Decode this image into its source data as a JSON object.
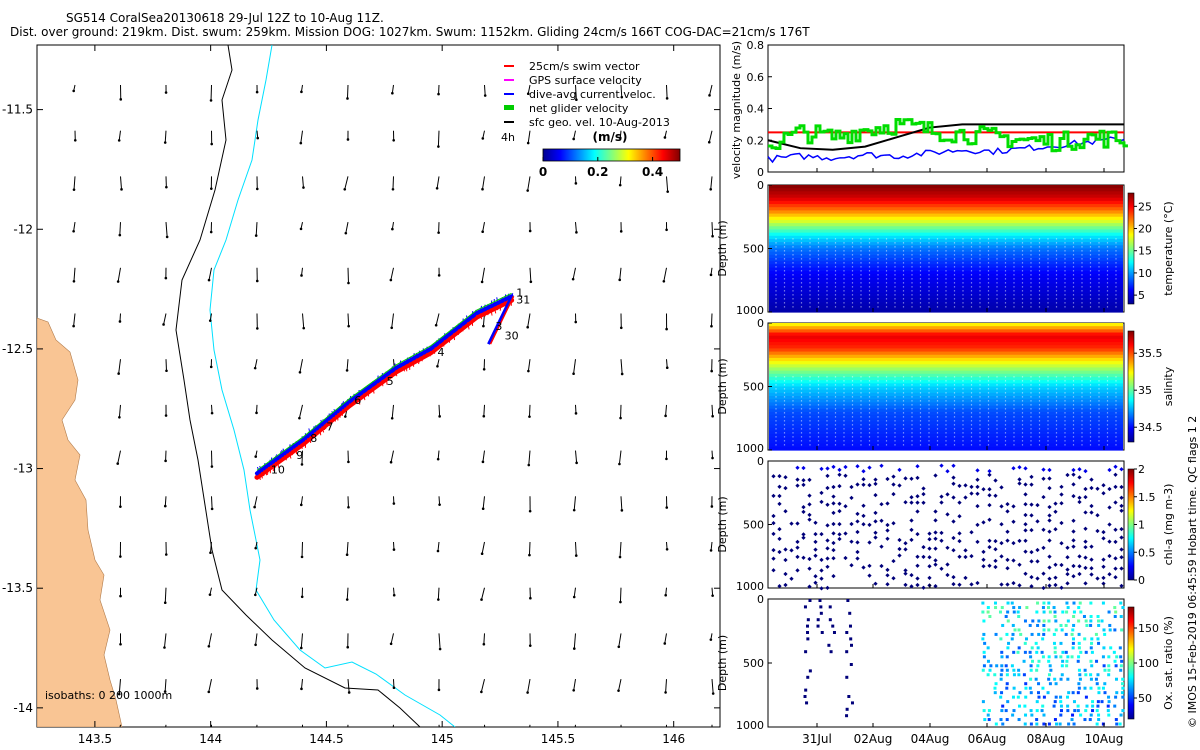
{
  "header": {
    "line1": "SG514 CoralSea20130618 29-Jul 12Z to 10-Aug 11Z.",
    "line2": "Dist. over ground: 219km. Dist. swum: 259km. Mission DOG: 1027km. Swum: 1152km. Gliding 24cm/s 166T COG-DAC=21cm/s 176T"
  },
  "footer": {
    "credit": "© IMOS 15-Feb-2019 06:45:59 Hobart time. QC flags 1  2"
  },
  "chart_data": [
    {
      "type": "scatter",
      "name": "map",
      "x_ticks": [
        "143.5",
        "144",
        "144.5",
        "145",
        "145.5",
        "146"
      ],
      "y_ticks": [
        "-11.5",
        "-12",
        "-12.5",
        "-13",
        "-13.5",
        "-14"
      ],
      "xlim": [
        143.25,
        146.2
      ],
      "ylim": [
        -14.08,
        -11.23
      ],
      "legend": [
        {
          "label": "25cm/s swim vector",
          "color": "#ff0000"
        },
        {
          "label": "GPS surface velocity",
          "color": "#ff00ff"
        },
        {
          "label": "dive-avg current veloc.",
          "color": "#0000ff"
        },
        {
          "label": "net glider velocity",
          "color": "#00cc00"
        },
        {
          "label": "sfc geo. vel. 10-Aug-2013",
          "color": "#000000"
        }
      ],
      "colorbar": {
        "label": "(m/s)",
        "ticks": [
          "0",
          "0.2",
          "0.4"
        ],
        "range": [
          0,
          0.5
        ]
      },
      "annotation_4h": "4h",
      "isobaths_label": "isobaths: 0   200  1000m",
      "track": [
        [
          145.3,
          -12.28
        ],
        [
          145.15,
          -12.35
        ],
        [
          144.95,
          -12.5
        ],
        [
          144.8,
          -12.58
        ],
        [
          144.6,
          -12.72
        ],
        [
          144.5,
          -12.8
        ],
        [
          144.4,
          -12.88
        ],
        [
          144.3,
          -12.95
        ],
        [
          144.2,
          -13.02
        ]
      ],
      "track_tail": [
        [
          145.3,
          -12.28
        ],
        [
          145.25,
          -12.38
        ],
        [
          145.2,
          -12.48
        ]
      ],
      "day_labels": [
        {
          "t": "1",
          "lon": 145.32,
          "lat": -12.28
        },
        {
          "t": "31",
          "lon": 145.32,
          "lat": -12.31
        },
        {
          "t": "3",
          "lon": 145.23,
          "lat": -12.42
        },
        {
          "t": "30",
          "lon": 145.27,
          "lat": -12.46
        },
        {
          "t": "4",
          "lon": 144.98,
          "lat": -12.53
        },
        {
          "t": "5",
          "lon": 144.76,
          "lat": -12.65
        },
        {
          "t": "6",
          "lon": 144.62,
          "lat": -12.73
        },
        {
          "t": "7",
          "lon": 144.5,
          "lat": -12.84
        },
        {
          "t": "8",
          "lon": 144.43,
          "lat": -12.89
        },
        {
          "t": "9",
          "lon": 144.37,
          "lat": -12.96
        },
        {
          "t": "10",
          "lon": 144.26,
          "lat": -13.02
        }
      ]
    },
    {
      "type": "line",
      "name": "velocity",
      "ylabel": "velocity magnitude (m/s)",
      "ylim": [
        0,
        0.8
      ],
      "y_ticks": [
        "0",
        "0.2",
        "0.4",
        "0.6",
        "0.8"
      ],
      "x": [
        0,
        1,
        2,
        3,
        4,
        5,
        6,
        7,
        8,
        9,
        10,
        11
      ],
      "series": [
        {
          "name": "swim",
          "color": "#ff0000",
          "values": [
            0.25,
            0.25,
            0.25,
            0.25,
            0.25,
            0.25,
            0.25,
            0.25,
            0.25,
            0.25,
            0.25,
            0.25
          ]
        },
        {
          "name": "geostrophic",
          "color": "#000000",
          "values": [
            0.2,
            0.15,
            0.14,
            0.16,
            0.22,
            0.28,
            0.3,
            0.3,
            0.3,
            0.3,
            0.3,
            0.3
          ]
        },
        {
          "name": "dive-avg current",
          "color": "#0000ff",
          "values": [
            0.08,
            0.1,
            0.09,
            0.11,
            0.1,
            0.12,
            0.14,
            0.13,
            0.15,
            0.17,
            0.19,
            0.21
          ]
        },
        {
          "name": "net glider",
          "color": "#00dd00",
          "values": [
            0.17,
            0.25,
            0.22,
            0.27,
            0.3,
            0.26,
            0.24,
            0.22,
            0.2,
            0.19,
            0.22,
            0.2
          ]
        }
      ]
    },
    {
      "type": "heatmap",
      "name": "temperature",
      "ylabel": "Depth (m)",
      "clabel": "temperature (°C)",
      "y_ticks": [
        "0",
        "500",
        "1000"
      ],
      "c_ticks": [
        "5",
        "10",
        "15",
        "20",
        "25"
      ],
      "crange": [
        3,
        28
      ],
      "depths": [
        0,
        100,
        200,
        300,
        400,
        500,
        700,
        1000
      ],
      "values": [
        28,
        26,
        22,
        17,
        12,
        9,
        6,
        4
      ]
    },
    {
      "type": "heatmap",
      "name": "salinity",
      "ylabel": "Depth (m)",
      "clabel": "salinity",
      "y_ticks": [
        "0",
        "500",
        "1000"
      ],
      "c_ticks": [
        "34.5",
        "35",
        "35.5"
      ],
      "crange": [
        34.3,
        35.8
      ],
      "depths": [
        0,
        100,
        200,
        300,
        400,
        500,
        700,
        1000
      ],
      "values": [
        35.2,
        35.65,
        35.55,
        35.25,
        35.0,
        34.8,
        34.6,
        34.5
      ]
    },
    {
      "type": "scatter",
      "name": "chla",
      "ylabel": "Depth (m)",
      "clabel": "chl-a (mg m-3)",
      "y_ticks": [
        "0",
        "500",
        "1000"
      ],
      "c_ticks": [
        "0",
        "0.5",
        "1",
        "1.5",
        "2"
      ],
      "crange": [
        0,
        2
      ]
    },
    {
      "type": "scatter",
      "name": "oxygen",
      "ylabel": "Depth (m)",
      "clabel": "Ox. sat. ratio (%)",
      "y_ticks": [
        "0",
        "500",
        "1000"
      ],
      "c_ticks": [
        "50",
        "100",
        "150"
      ],
      "crange": [
        20,
        180
      ]
    },
    {
      "type": "table",
      "name": "time_axis",
      "x_ticks": [
        "31Jul",
        "02Aug",
        "04Aug",
        "06Aug",
        "08Aug",
        "10Aug"
      ]
    }
  ]
}
